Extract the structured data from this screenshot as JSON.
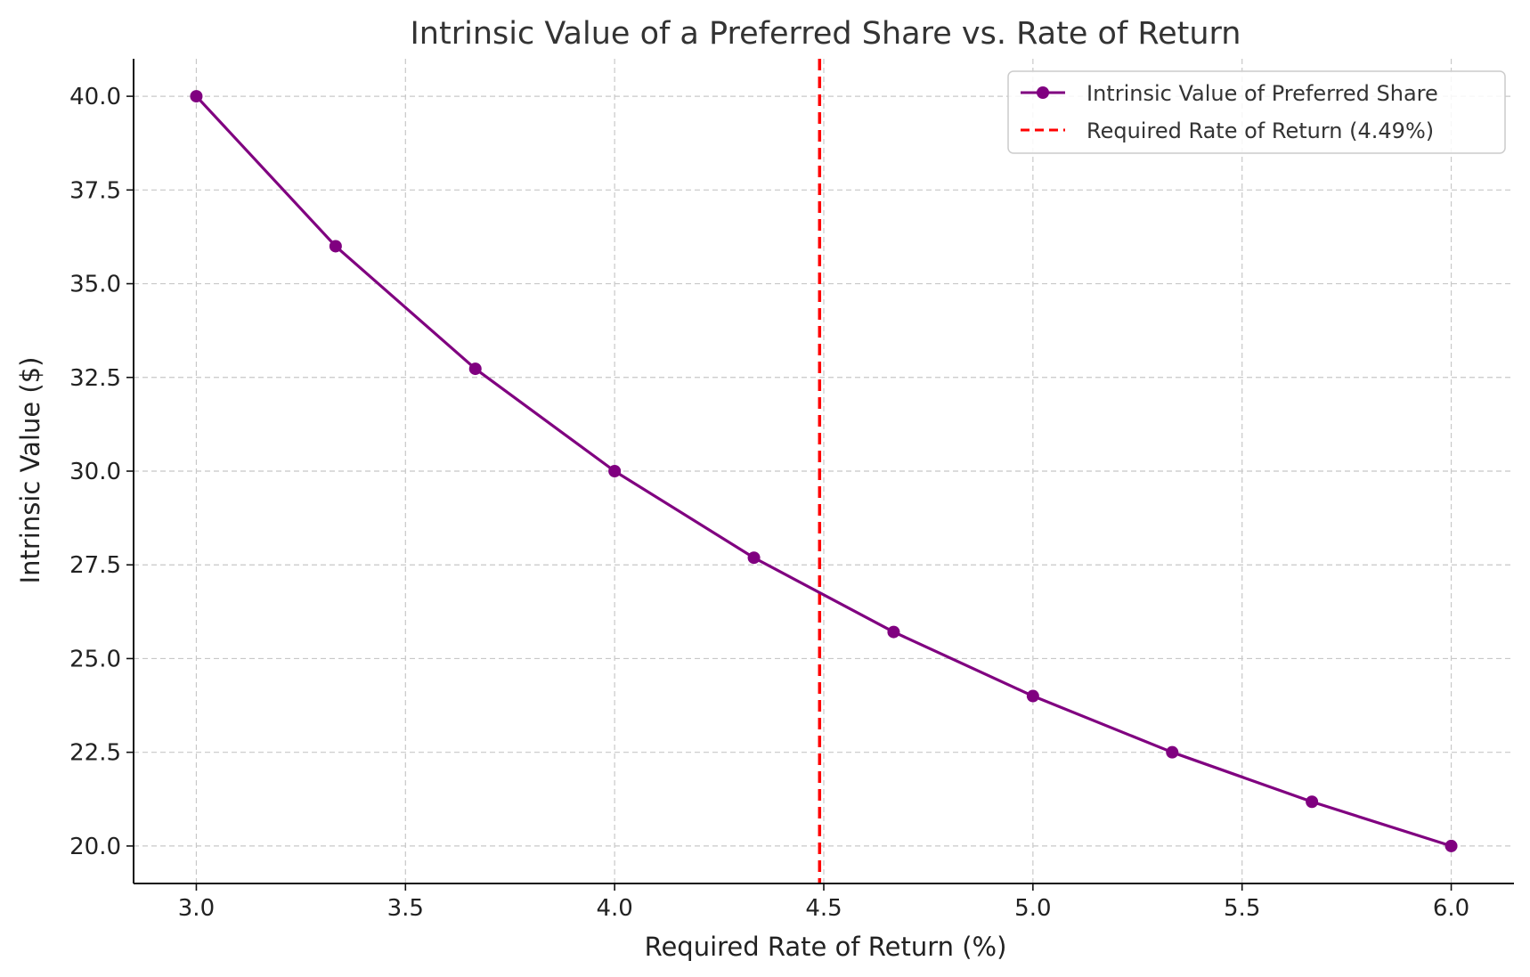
{
  "chart_data": {
    "type": "line",
    "title": "Intrinsic Value of a Preferred Share vs. Rate of Return",
    "xlabel": "Required Rate of Return (%)",
    "ylabel": "Intrinsic Value ($)",
    "xlim": [
      2.85,
      6.15
    ],
    "ylim": [
      19.0,
      41.0
    ],
    "xticks": [
      3.0,
      3.5,
      4.0,
      4.5,
      5.0,
      5.5,
      6.0
    ],
    "xtick_labels": [
      "3.0",
      "3.5",
      "4.0",
      "4.5",
      "5.0",
      "5.5",
      "6.0"
    ],
    "yticks": [
      20.0,
      22.5,
      25.0,
      27.5,
      30.0,
      32.5,
      35.0,
      37.5,
      40.0
    ],
    "ytick_labels": [
      "20.0",
      "22.5",
      "25.0",
      "27.5",
      "30.0",
      "32.5",
      "35.0",
      "37.5",
      "40.0"
    ],
    "grid": true,
    "legend_position": "top-right",
    "series": [
      {
        "name": "Intrinsic Value of Preferred Share",
        "color": "#800080",
        "marker": "circle",
        "x": [
          3.0,
          3.333,
          3.667,
          4.0,
          4.333,
          4.667,
          5.0,
          5.333,
          5.667,
          6.0
        ],
        "y": [
          40.0,
          36.0,
          32.73,
          30.0,
          27.69,
          25.71,
          24.0,
          22.5,
          21.18,
          20.0
        ]
      }
    ],
    "reference_lines": [
      {
        "name": "Required Rate of Return (4.49%)",
        "orientation": "vertical",
        "x": 4.49,
        "color": "#ff0000",
        "style": "dashed"
      }
    ]
  }
}
